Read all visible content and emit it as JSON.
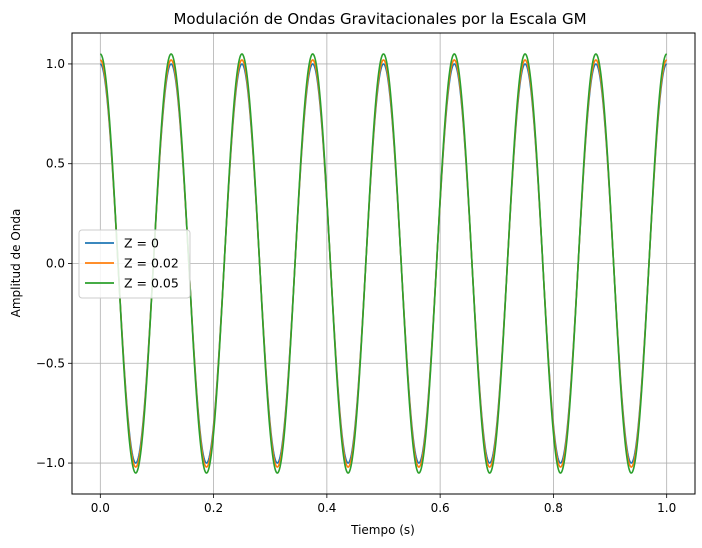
{
  "chart_data": {
    "type": "line",
    "title": "Modulación de Ondas Gravitacionales por la Escala GM",
    "xlabel": "Tiempo (s)",
    "ylabel": "Amplitud de Onda",
    "xlim": [
      -0.05,
      1.05
    ],
    "ylim": [
      -1.155,
      1.155
    ],
    "x_ticks": [
      0.0,
      0.2,
      0.4,
      0.6,
      0.8,
      1.0
    ],
    "x_tick_labels": [
      "0.0",
      "0.2",
      "0.4",
      "0.6",
      "0.8",
      "1.0"
    ],
    "y_ticks": [
      -1.0,
      -0.5,
      0.0,
      0.5,
      1.0
    ],
    "y_tick_labels": [
      "−1.0",
      "−0.5",
      "0.0",
      "0.5",
      "1.0"
    ],
    "grid": true,
    "legend_position": "center-left",
    "function": "cos(2*pi*f*t) * (1 + Z)",
    "frequency_hz": 8,
    "x_range": [
      0.0,
      1.0
    ],
    "series": [
      {
        "name": "Z = 0",
        "amplitude": 1.0,
        "color": "#1f77b4"
      },
      {
        "name": "Z = 0.02",
        "amplitude": 1.02,
        "color": "#ff7f0e"
      },
      {
        "name": "Z = 0.05",
        "amplitude": 1.05,
        "color": "#2ca02c"
      }
    ]
  }
}
